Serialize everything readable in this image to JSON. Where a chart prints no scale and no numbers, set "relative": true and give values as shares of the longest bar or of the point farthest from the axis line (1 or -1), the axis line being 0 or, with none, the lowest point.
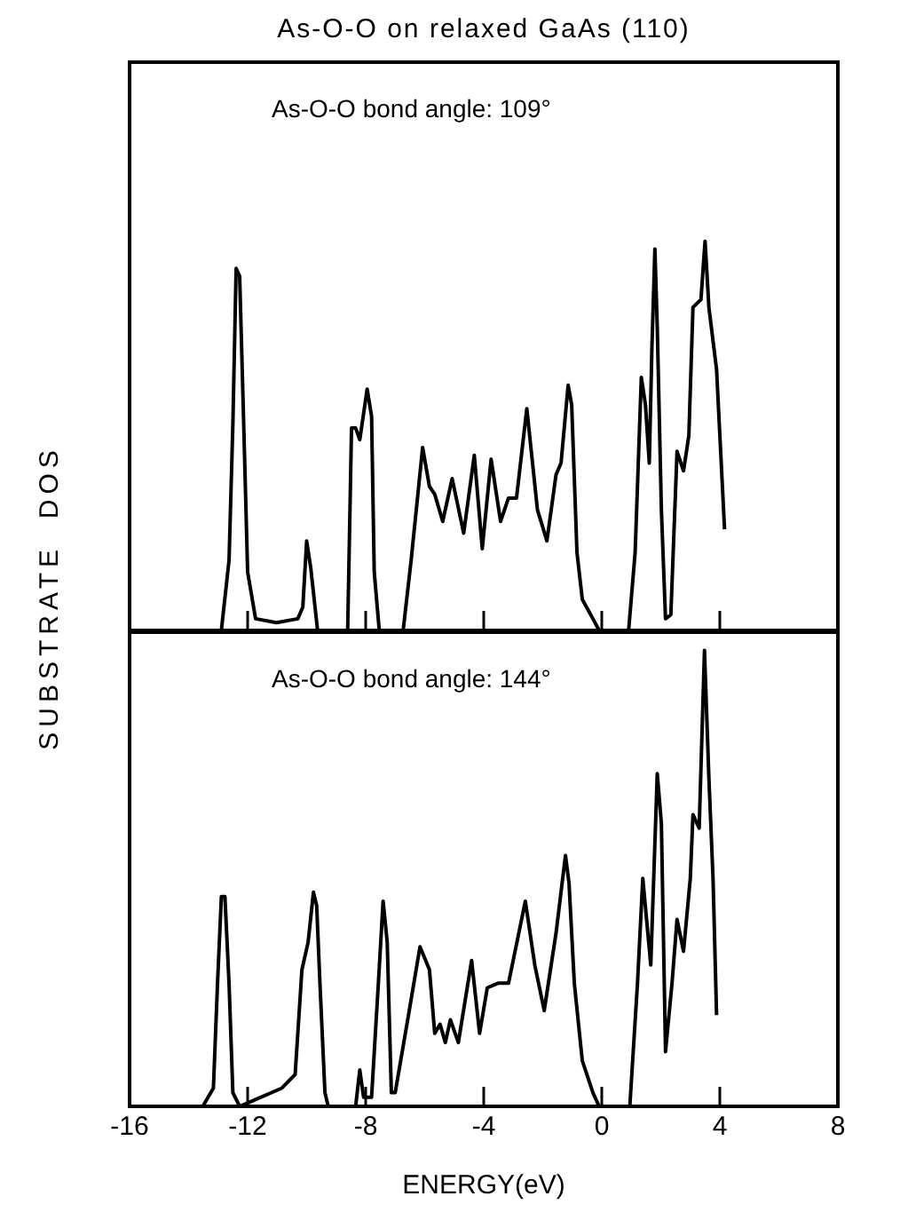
{
  "chart_data": [
    {
      "type": "line",
      "title": "As-O-O on relaxed  GaAs (110)",
      "ylabel": "SUBSTRATE  DOS",
      "annotations": [
        "As-O-O bond angle: 109°"
      ],
      "relative": true,
      "xlim": [
        -16,
        8
      ],
      "xticks": [
        -16,
        -12,
        -8,
        -4,
        0,
        4,
        8
      ],
      "tick_labels": false,
      "series": [
        {
          "color": "#000000",
          "x": [
            -12.89,
            -12.63,
            -12.5,
            -12.39,
            -12.27,
            -12.14,
            -12.0,
            -11.73,
            -11.02,
            -10.3,
            -10.13,
            -10.0,
            -9.86,
            -9.63,
            -8.61,
            -8.48,
            -8.34,
            -8.2,
            -7.95,
            -7.8,
            -7.71,
            -7.54,
            -6.73,
            -6.46,
            -6.07,
            -5.84,
            -5.66,
            -5.39,
            -5.07,
            -4.68,
            -4.32,
            -4.05,
            -3.75,
            -3.43,
            -3.16,
            -2.89,
            -2.54,
            -2.18,
            -1.86,
            -1.55,
            -1.38,
            -1.14,
            -1.02,
            -0.84,
            -0.66,
            -0.3,
            -0.09,
            0.91,
            1.13,
            1.34,
            1.48,
            1.61,
            1.7,
            1.8,
            1.88,
            2.02,
            2.16,
            2.34,
            2.55,
            2.77,
            2.95,
            3.09,
            3.36,
            3.5,
            3.63,
            3.89,
            4.16
          ],
          "values": [
            0,
            0.18,
            0.53,
            0.93,
            0.91,
            0.55,
            0.15,
            0.03,
            0.02,
            0.03,
            0.06,
            0.23,
            0.16,
            0,
            0,
            0.52,
            0.52,
            0.49,
            0.62,
            0.55,
            0.15,
            0,
            0,
            0.18,
            0.47,
            0.37,
            0.35,
            0.28,
            0.39,
            0.25,
            0.45,
            0.21,
            0.44,
            0.28,
            0.34,
            0.34,
            0.57,
            0.31,
            0.23,
            0.4,
            0.43,
            0.63,
            0.58,
            0.2,
            0.08,
            0.03,
            0,
            0,
            0.2,
            0.65,
            0.58,
            0.43,
            0.73,
            0.98,
            0.78,
            0.31,
            0.03,
            0.04,
            0.46,
            0.41,
            0.5,
            0.83,
            0.85,
            1,
            0.83,
            0.67,
            0.26
          ]
        }
      ]
    },
    {
      "type": "line",
      "xlabel": "ENERGY(eV)",
      "annotations": [
        "As-O-O bond angle: 144°"
      ],
      "relative": true,
      "xlim": [
        -16,
        8
      ],
      "xticks": [
        -16,
        -12,
        -8,
        -4,
        0,
        4,
        8
      ],
      "tick_labels": "x",
      "series": [
        {
          "color": "#000000",
          "x": [
            -13.52,
            -13.16,
            -13.02,
            -12.89,
            -12.77,
            -12.63,
            -12.5,
            -12.27,
            -11.91,
            -10.84,
            -10.39,
            -10.16,
            -9.95,
            -9.77,
            -9.66,
            -9.55,
            -9.38,
            -9.27,
            -8.34,
            -8.2,
            -8.07,
            -7.8,
            -7.57,
            -7.41,
            -7.27,
            -7.13,
            -7.0,
            -6.55,
            -6.16,
            -5.84,
            -5.66,
            -5.48,
            -5.3,
            -5.13,
            -4.86,
            -4.41,
            -4.14,
            -3.88,
            -3.52,
            -3.16,
            -2.59,
            -2.27,
            -1.95,
            -1.55,
            -1.23,
            -1.11,
            -0.93,
            -0.66,
            -0.3,
            -0.09,
            0.95,
            1.21,
            1.39,
            1.66,
            1.88,
            2.02,
            2.16,
            2.38,
            2.55,
            2.77,
            3.0,
            3.09,
            3.3,
            3.48,
            3.63,
            3.77,
            3.89
          ],
          "values": [
            0,
            0.04,
            0.27,
            0.46,
            0.46,
            0.27,
            0.03,
            0,
            0.01,
            0.04,
            0.07,
            0.3,
            0.36,
            0.47,
            0.44,
            0.27,
            0.03,
            0,
            0,
            0.08,
            0.02,
            0.02,
            0.27,
            0.45,
            0.36,
            0.03,
            0.03,
            0.2,
            0.35,
            0.3,
            0.16,
            0.18,
            0.14,
            0.19,
            0.14,
            0.32,
            0.16,
            0.26,
            0.27,
            0.27,
            0.45,
            0.31,
            0.21,
            0.38,
            0.55,
            0.49,
            0.27,
            0.1,
            0.03,
            0,
            0,
            0.27,
            0.5,
            0.31,
            0.73,
            0.62,
            0.12,
            0.27,
            0.41,
            0.34,
            0.5,
            0.64,
            0.61,
            1,
            0.72,
            0.5,
            0.2
          ]
        }
      ]
    }
  ]
}
